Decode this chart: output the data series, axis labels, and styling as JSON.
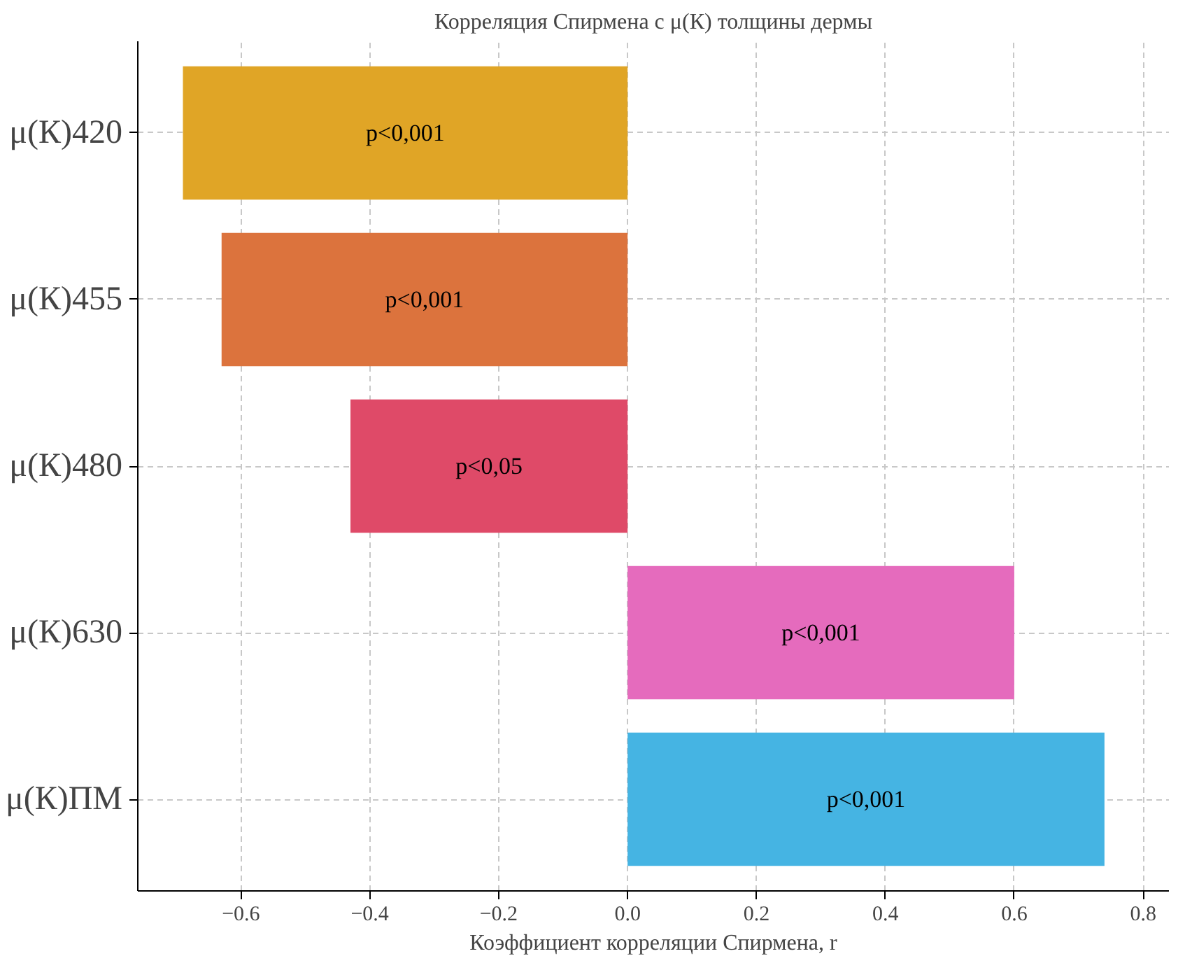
{
  "chart_data": {
    "type": "bar",
    "orientation": "horizontal",
    "title": "Корреляция Спирмена с μ(К) толщины дермы",
    "xlabel": "Коэффициент корреляции Спирмена, r",
    "categories": [
      "μ(К)420",
      "μ(К)455",
      "μ(К)480",
      "μ(К)630",
      "μ(К)ПМ"
    ],
    "values": [
      -0.69,
      -0.63,
      -0.43,
      0.6,
      0.74
    ],
    "colors": [
      "#e0a526",
      "#dc733d",
      "#df4a68",
      "#e56bbd",
      "#45b4e3"
    ],
    "value_labels": [
      "p<0,001",
      "p<0,001",
      "p<0,05",
      "p<0,001",
      "p<0,001"
    ],
    "xlim": [
      -0.76,
      0.84
    ],
    "xticks": [
      {
        "value": -0.6,
        "label": "−0.6"
      },
      {
        "value": -0.4,
        "label": "−0.4"
      },
      {
        "value": -0.2,
        "label": "−0.2"
      },
      {
        "value": 0.0,
        "label": "0.0"
      },
      {
        "value": 0.2,
        "label": "0.2"
      },
      {
        "value": 0.4,
        "label": "0.4"
      },
      {
        "value": 0.6,
        "label": "0.6"
      },
      {
        "value": 0.8,
        "label": "0.8"
      }
    ],
    "grid": true
  }
}
